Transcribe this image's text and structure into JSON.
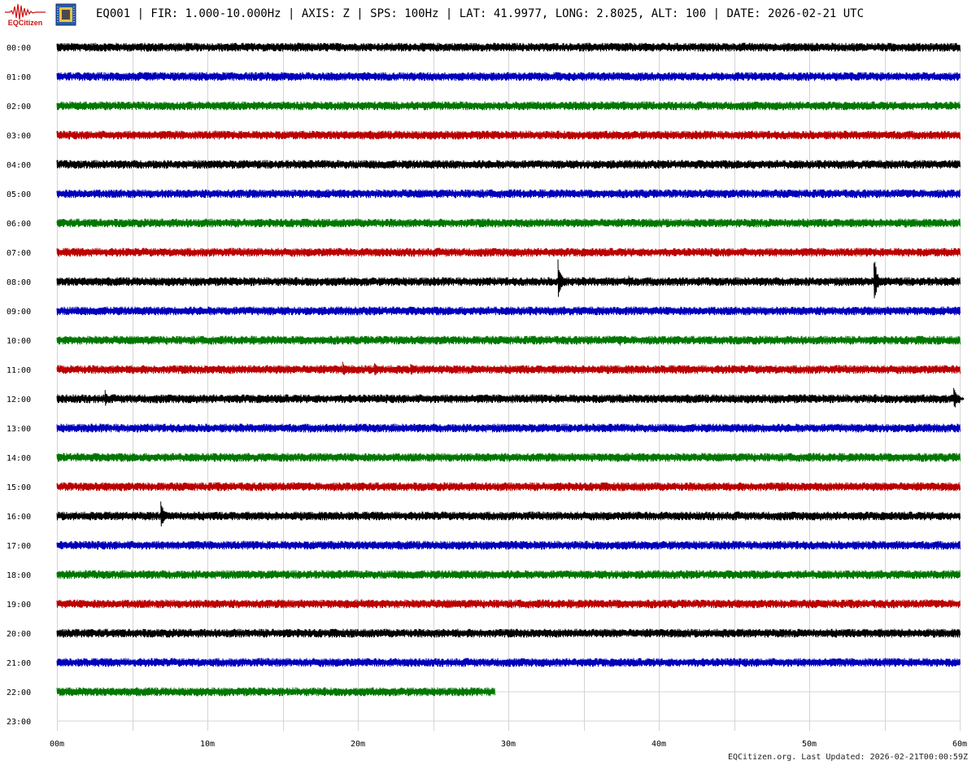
{
  "header": {
    "logo_text": "EQCitizen",
    "title": "EQ001 | FIR: 1.000-10.000Hz | AXIS: Z | SPS: 100Hz | LAT: 41.9977, LONG: 2.8025, ALT: 100 | DATE: 2026-02-21 UTC"
  },
  "footer": {
    "text": "EQCitizen.org. Last Updated: 2026-02-21T00:00:59Z"
  },
  "chart_data": {
    "type": "line",
    "title": "EQ001 | FIR: 1.000-10.000Hz | AXIS: Z | SPS: 100Hz | LAT: 41.9977, LONG: 2.8025, ALT: 100 | DATE: 2026-02-21 UTC",
    "xlabel": "",
    "ylabel": "",
    "xlim": [
      0,
      60
    ],
    "x_unit": "minutes",
    "x_ticks": [
      "00m",
      "10m",
      "20m",
      "30m",
      "40m",
      "50m",
      "60m"
    ],
    "row_labels": [
      "00:00",
      "01:00",
      "02:00",
      "03:00",
      "04:00",
      "05:00",
      "06:00",
      "07:00",
      "08:00",
      "09:00",
      "10:00",
      "11:00",
      "12:00",
      "13:00",
      "14:00",
      "15:00",
      "16:00",
      "17:00",
      "18:00",
      "19:00",
      "20:00",
      "21:00",
      "22:00",
      "23:00"
    ],
    "grid": true,
    "color_cycle": [
      "#000000",
      "#0000bb",
      "#007700",
      "#bb0000"
    ],
    "rows": [
      {
        "hour": "00:00",
        "end_minute": 60,
        "events": []
      },
      {
        "hour": "01:00",
        "end_minute": 60,
        "events": []
      },
      {
        "hour": "02:00",
        "end_minute": 60,
        "events": []
      },
      {
        "hour": "03:00",
        "end_minute": 60,
        "events": []
      },
      {
        "hour": "04:00",
        "end_minute": 60,
        "events": []
      },
      {
        "hour": "05:00",
        "end_minute": 60,
        "events": []
      },
      {
        "hour": "06:00",
        "end_minute": 60,
        "events": []
      },
      {
        "hour": "07:00",
        "end_minute": 60,
        "events": []
      },
      {
        "hour": "08:00",
        "end_minute": 60,
        "events": [
          {
            "minute": 33.3,
            "amplitude": 1.0
          },
          {
            "minute": 38.0,
            "amplitude": 0.3
          },
          {
            "minute": 54.3,
            "amplitude": 1.2
          }
        ]
      },
      {
        "hour": "09:00",
        "end_minute": 60,
        "events": []
      },
      {
        "hour": "10:00",
        "end_minute": 60,
        "events": [
          {
            "minute": 37.4,
            "amplitude": 0.3
          }
        ]
      },
      {
        "hour": "11:00",
        "end_minute": 60,
        "events": [
          {
            "minute": 19.0,
            "amplitude": 0.4
          },
          {
            "minute": 21.1,
            "amplitude": 0.4
          },
          {
            "minute": 23.5,
            "amplitude": 0.4
          }
        ]
      },
      {
        "hour": "12:00",
        "end_minute": 60,
        "events": [
          {
            "minute": 3.2,
            "amplitude": 0.4
          },
          {
            "minute": 59.6,
            "amplitude": 0.6
          }
        ]
      },
      {
        "hour": "13:00",
        "end_minute": 60,
        "events": []
      },
      {
        "hour": "14:00",
        "end_minute": 60,
        "events": []
      },
      {
        "hour": "15:00",
        "end_minute": 60,
        "events": []
      },
      {
        "hour": "16:00",
        "end_minute": 60,
        "events": [
          {
            "minute": 6.9,
            "amplitude": 0.8
          }
        ]
      },
      {
        "hour": "17:00",
        "end_minute": 60,
        "events": []
      },
      {
        "hour": "18:00",
        "end_minute": 60,
        "events": []
      },
      {
        "hour": "19:00",
        "end_minute": 60,
        "events": []
      },
      {
        "hour": "20:00",
        "end_minute": 60,
        "events": []
      },
      {
        "hour": "21:00",
        "end_minute": 60,
        "events": []
      },
      {
        "hour": "22:00",
        "end_minute": 29.1,
        "events": []
      },
      {
        "hour": "23:00",
        "end_minute": 0,
        "events": []
      }
    ]
  }
}
